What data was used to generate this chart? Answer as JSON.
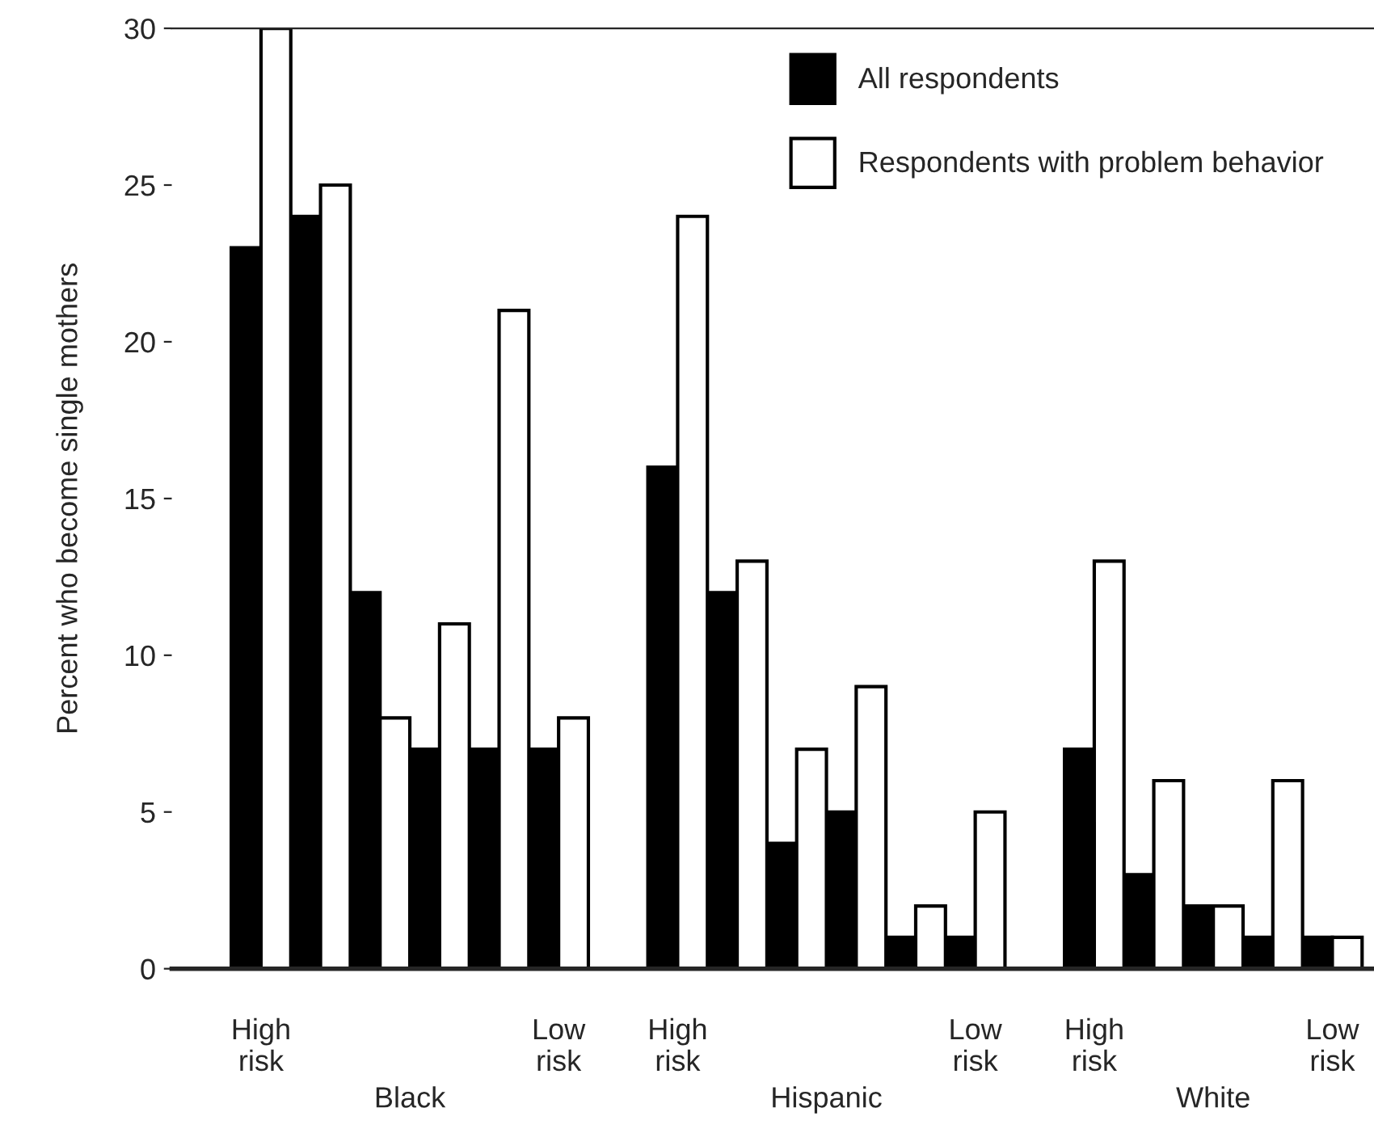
{
  "chart_data": {
    "type": "bar",
    "ylabel": "Percent who become single mothers",
    "categories": [
      "High\nrisk",
      null,
      null,
      null,
      null,
      "Low\nrisk",
      null,
      "High\nrisk",
      null,
      null,
      null,
      null,
      "Low\nrisk",
      null,
      "High\nrisk",
      null,
      null,
      null,
      "Low\nrisk"
    ],
    "series": [
      {
        "name": "All respondents",
        "color": "#000000",
        "values": [
          23,
          24,
          12,
          7,
          7,
          7,
          null,
          16,
          12,
          4,
          5,
          1,
          1,
          null,
          7,
          3,
          2,
          1,
          1
        ]
      },
      {
        "name": "Respondents with problem behavior",
        "color": "#ffffff",
        "values": [
          30,
          25,
          8,
          11,
          21,
          8,
          null,
          24,
          13,
          7,
          9,
          2,
          5,
          null,
          13,
          6,
          2,
          6,
          1
        ]
      }
    ],
    "ylim": [
      0,
      30
    ],
    "yticks": [
      0,
      5,
      10,
      15,
      20,
      25,
      30
    ],
    "grid": false,
    "legend": "top right",
    "annotations": [
      "Black",
      "Hispanic",
      "White"
    ]
  }
}
